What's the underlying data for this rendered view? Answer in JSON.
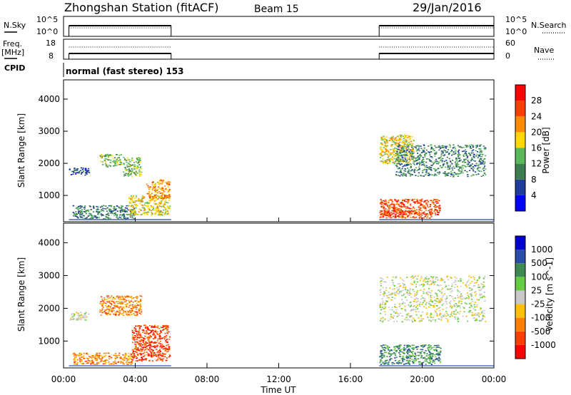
{
  "header": {
    "station": "Zhongshan Station (fitACF)",
    "beam": "Beam 15",
    "date": "29/Jan/2016"
  },
  "panels": {
    "nsky_label": "N.Sky",
    "nsky_ticks": [
      "10^5",
      "10^0"
    ],
    "nsearch_label": "N.Search",
    "nsearch_ticks": [
      "10^5",
      "10^0"
    ],
    "freq_label": "Freq.",
    "freq_unit": "[MHz]",
    "freq_ticks": [
      "18",
      "8"
    ],
    "nave_label": "Nave",
    "nave_ticks": [
      "60",
      "0"
    ],
    "cpid_label": "CPID",
    "cpid_text": "normal (fast stereo) 153"
  },
  "chart_data": [
    {
      "type": "heatmap",
      "name": "power",
      "ylabel": "Slant Range [km]",
      "yticks": [
        1000,
        2000,
        3000,
        4000
      ],
      "ylim": [
        180,
        4600
      ],
      "xlim": [
        0,
        24
      ],
      "colorbar_label": "Power [dB]",
      "colorbar_ticks": [
        "4",
        "8",
        "12",
        "16",
        "20",
        "24",
        "28"
      ],
      "colorbar_colors": [
        "#0000ff",
        "#1e3c9a",
        "#3d7e50",
        "#5bb85b",
        "#ffd800",
        "#ff8c00",
        "#ff4000",
        "#ff0000"
      ],
      "data_windows": [
        [
          0.3,
          6.0
        ],
        [
          17.6,
          24.0
        ]
      ],
      "scatter_regions": [
        {
          "x": [
            0.3,
            1.4
          ],
          "y": [
            1650,
            1900
          ],
          "level": 1
        },
        {
          "x": [
            2.0,
            3.2
          ],
          "y": [
            1900,
            2300
          ],
          "level": 3
        },
        {
          "x": [
            3.3,
            4.3
          ],
          "y": [
            1600,
            2200
          ],
          "level": 3
        },
        {
          "x": [
            0.5,
            4.0
          ],
          "y": [
            280,
            700
          ],
          "level": 2
        },
        {
          "x": [
            3.6,
            5.9
          ],
          "y": [
            400,
            1000
          ],
          "level": 4
        },
        {
          "x": [
            4.6,
            5.9
          ],
          "y": [
            900,
            1500
          ],
          "level": 5
        },
        {
          "x": [
            17.6,
            19.5
          ],
          "y": [
            2000,
            2900
          ],
          "level": 4
        },
        {
          "x": [
            18.5,
            23.5
          ],
          "y": [
            1600,
            2600
          ],
          "level": 2
        },
        {
          "x": [
            17.6,
            21.0
          ],
          "y": [
            400,
            900
          ],
          "level": 6
        },
        {
          "x": [
            17.6,
            20.5
          ],
          "y": [
            300,
            550
          ],
          "level": 6
        }
      ]
    },
    {
      "type": "heatmap",
      "name": "velocity",
      "ylabel": "Slant Range [km]",
      "yticks": [
        1000,
        2000,
        3000,
        4000
      ],
      "ylim": [
        180,
        4600
      ],
      "xlim": [
        0,
        24
      ],
      "xticks": [
        "00:00",
        "04:00",
        "08:00",
        "12:00",
        "16:00",
        "20:00",
        "00:00"
      ],
      "xlabel": "Time UT",
      "colorbar_label": "Velocity [m s^-1]",
      "colorbar_ticks": [
        "1000",
        "500",
        "100",
        "25",
        "-25",
        "-100",
        "-500",
        "-1000"
      ],
      "colorbar_colors": [
        "#0000d0",
        "#2a4ea8",
        "#3e8a52",
        "#66cc44",
        "#c8c8c8",
        "#ffc000",
        "#ff8000",
        "#ff4000",
        "#ff0000"
      ],
      "data_windows": [
        [
          0.3,
          6.0
        ],
        [
          17.6,
          24.0
        ]
      ],
      "scatter_regions": [
        {
          "x": [
            0.3,
            1.4
          ],
          "y": [
            1650,
            1900
          ],
          "level": 4
        },
        {
          "x": [
            2.0,
            4.3
          ],
          "y": [
            1800,
            2400
          ],
          "level": 6
        },
        {
          "x": [
            0.5,
            3.8
          ],
          "y": [
            300,
            650
          ],
          "level": 6
        },
        {
          "x": [
            3.8,
            5.9
          ],
          "y": [
            400,
            1500
          ],
          "level": 7
        },
        {
          "x": [
            17.6,
            23.5
          ],
          "y": [
            1600,
            3000
          ],
          "level": 4
        },
        {
          "x": [
            17.6,
            21.0
          ],
          "y": [
            300,
            900
          ],
          "level": 2
        }
      ]
    }
  ]
}
